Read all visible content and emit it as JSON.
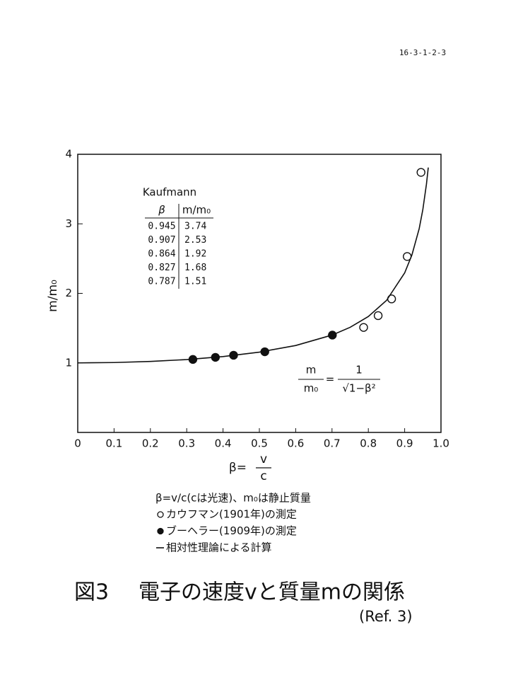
{
  "page_id": "16-3-1-2-3",
  "note": "β=v/c(cは光速)、m₀は静止質量",
  "caption_figure": "図3",
  "caption_title": "電子の速度vと質量mの関係",
  "caption_ref": "(Ref. 3)",
  "chart_data": {
    "type": "scatter",
    "y_label": "m/m₀",
    "x_label": {
      "left": "β=",
      "numerator": "v",
      "denominator": "c"
    },
    "xlim": [
      0,
      1
    ],
    "ylim": [
      0,
      4
    ],
    "xticks": [
      0,
      0.1,
      0.2,
      0.3,
      0.4,
      0.5,
      0.6,
      0.7,
      0.8,
      0.9,
      {
        "value": 1,
        "label": "1.0"
      }
    ],
    "yticks": [
      1,
      2,
      3,
      4
    ],
    "series": [
      {
        "name": "カウフマン(1901年)の測定",
        "marker": "open",
        "color": "#111111",
        "x": [
          0.787,
          0.827,
          0.864,
          0.907,
          0.945
        ],
        "values": [
          1.51,
          1.68,
          1.92,
          2.53,
          3.74
        ]
      },
      {
        "name": "ブーヘラー(1909年)の測定",
        "marker": "filled",
        "color": "#111111",
        "x": [
          0.317,
          0.379,
          0.429,
          0.515,
          0.701
        ],
        "values": [
          1.05,
          1.08,
          1.11,
          1.16,
          1.4
        ]
      },
      {
        "name": "相対性理論による計算",
        "type": "line",
        "color": "#111111",
        "x": [
          0,
          0.1,
          0.2,
          0.3,
          0.4,
          0.5,
          0.6,
          0.7,
          0.75,
          0.8,
          0.85,
          0.9,
          0.92,
          0.94,
          0.95,
          0.96,
          0.965
        ],
        "values": [
          1,
          1.005,
          1.021,
          1.048,
          1.091,
          1.155,
          1.25,
          1.4,
          1.512,
          1.667,
          1.898,
          2.294,
          2.552,
          2.931,
          3.203,
          3.571,
          3.81
        ]
      }
    ],
    "table": {
      "title": "Kaufmann",
      "header": [
        "β",
        "m/m₀"
      ],
      "rows": [
        [
          "0.945",
          "3.74"
        ],
        [
          "0.907",
          "2.53"
        ],
        [
          "0.864",
          "1.92"
        ],
        [
          "0.827",
          "1.68"
        ],
        [
          "0.787",
          "1.51"
        ]
      ]
    },
    "formula": {
      "numerator_left": "m",
      "denominator_left": "m₀",
      "equals": "=",
      "numerator_right": "1",
      "denominator_right": "√1−β²"
    }
  }
}
